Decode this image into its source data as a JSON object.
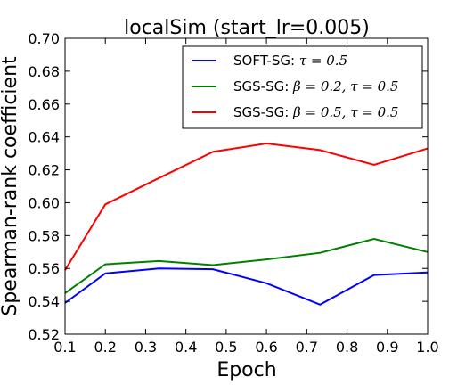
{
  "chart_data": {
    "type": "line",
    "title": "localSim (start_lr=0.005)",
    "xlabel": "Epoch",
    "ylabel": "Spearman-rank coefficient",
    "xlim": [
      0.1,
      1.0
    ],
    "ylim": [
      0.52,
      0.7
    ],
    "x_ticks": [
      "0.1",
      "0.2",
      "0.3",
      "0.4",
      "0.5",
      "0.6",
      "0.7",
      "0.8",
      "0.9",
      "1.0"
    ],
    "y_ticks": [
      "0.52",
      "0.54",
      "0.56",
      "0.58",
      "0.60",
      "0.62",
      "0.64",
      "0.66",
      "0.68",
      "0.70"
    ],
    "x": [
      0.1,
      0.2,
      0.333,
      0.467,
      0.6,
      0.733,
      0.867,
      1.0
    ],
    "series": [
      {
        "name": "SOFT-SG: τ=0.5",
        "legend_prefix": "SOFT-SG:",
        "legend_math": "τ = 0.5",
        "color": "#0000ff",
        "values": [
          0.539,
          0.557,
          0.56,
          0.5595,
          0.551,
          0.538,
          0.556,
          0.5575
        ]
      },
      {
        "name": "SGS-SG: β=0.2, τ=0.5",
        "legend_prefix": "SGS-SG:",
        "legend_math": "β = 0.2, τ = 0.5",
        "color": "#008000",
        "values": [
          0.545,
          0.5625,
          0.5645,
          0.562,
          0.5655,
          0.5695,
          0.578,
          0.57
        ]
      },
      {
        "name": "SGS-SG: β=0.5, τ=0.5",
        "legend_prefix": "SGS-SG:",
        "legend_math": "β = 0.5, τ = 0.5",
        "color": "#ff0000",
        "values": [
          0.559,
          0.599,
          0.615,
          0.631,
          0.636,
          0.632,
          0.623,
          0.633
        ]
      }
    ],
    "grid": false,
    "legend_position": "top-right"
  }
}
